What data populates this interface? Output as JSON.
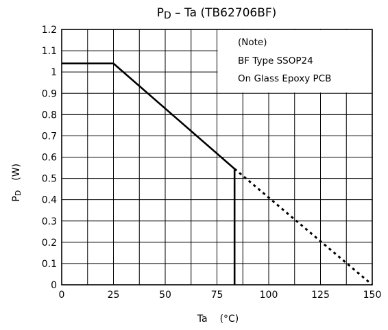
{
  "chart_data": {
    "type": "line",
    "title": {
      "main_symbol": "P",
      "main_sub": "D",
      "rest": " – Ta (TB62706BF)"
    },
    "xlabel": {
      "name": "Ta",
      "unit": "(°C)"
    },
    "ylabel": {
      "symbol": "P",
      "sub": "D",
      "unit": "(W)"
    },
    "xlim": [
      0,
      150
    ],
    "ylim": [
      0,
      1.2
    ],
    "x_ticks": [
      0,
      25,
      50,
      75,
      100,
      125,
      150
    ],
    "x_minor_step": 12.5,
    "y_ticks": [
      0,
      0.1,
      0.2,
      0.3,
      0.4,
      0.5,
      0.6,
      0.7,
      0.8,
      0.9,
      1,
      1.1,
      1.2
    ],
    "grid": true,
    "note": [
      "(Note)",
      "BF Type SSOP24",
      "On Glass Epoxy PCB"
    ],
    "series": [
      {
        "style": "solid",
        "points": [
          [
            0,
            1.04
          ],
          [
            25,
            1.04
          ],
          [
            83.5,
            0.545
          ]
        ]
      },
      {
        "style": "dotted",
        "points": [
          [
            83.5,
            0.545
          ],
          [
            150,
            0
          ]
        ]
      },
      {
        "style": "solid",
        "points": [
          [
            83.5,
            0.545
          ],
          [
            83.5,
            0
          ]
        ]
      }
    ]
  }
}
